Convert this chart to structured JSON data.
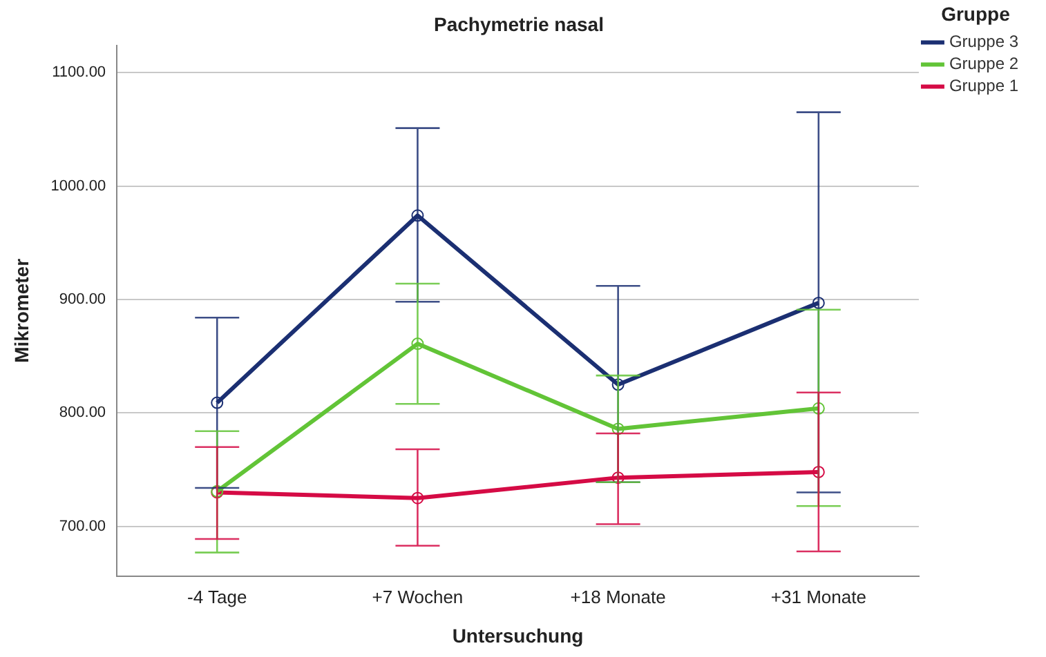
{
  "chart_data": {
    "type": "line",
    "title": "Pachymetrie nasal",
    "xlabel": "Untersuchung",
    "ylabel": "Mikrometer",
    "legend_title": "Gruppe",
    "categories": [
      "-4 Tage",
      "+7 Wochen",
      "+18 Monate",
      "+31 Monate"
    ],
    "series": [
      {
        "name": "Gruppe 3",
        "color": "#1b2f72",
        "values": [
          809,
          974,
          825,
          897
        ],
        "errors": [
          [
            734,
            884
          ],
          [
            898,
            1051
          ],
          [
            739,
            912
          ],
          [
            730,
            1065
          ]
        ]
      },
      {
        "name": "Gruppe 2",
        "color": "#62c437",
        "values": [
          731,
          861,
          786,
          804
        ],
        "errors": [
          [
            677,
            784
          ],
          [
            808,
            914
          ],
          [
            739,
            833
          ],
          [
            718,
            891
          ]
        ]
      },
      {
        "name": "Gruppe 1",
        "color": "#d50b45",
        "values": [
          730,
          725,
          743,
          748
        ],
        "errors": [
          [
            689,
            770
          ],
          [
            683,
            768
          ],
          [
            702,
            782
          ],
          [
            678,
            818
          ]
        ]
      }
    ],
    "ylim": [
      656,
      1124
    ],
    "yticks": [
      {
        "value": 700,
        "label": "700.00"
      },
      {
        "value": 800,
        "label": "800.00"
      },
      {
        "value": 900,
        "label": "900.00"
      },
      {
        "value": 1000,
        "label": "1000.00"
      },
      {
        "value": 1100,
        "label": "1100.00"
      }
    ],
    "grid": "y",
    "legend": "top right",
    "marker": "circle",
    "line_style": "solid"
  }
}
